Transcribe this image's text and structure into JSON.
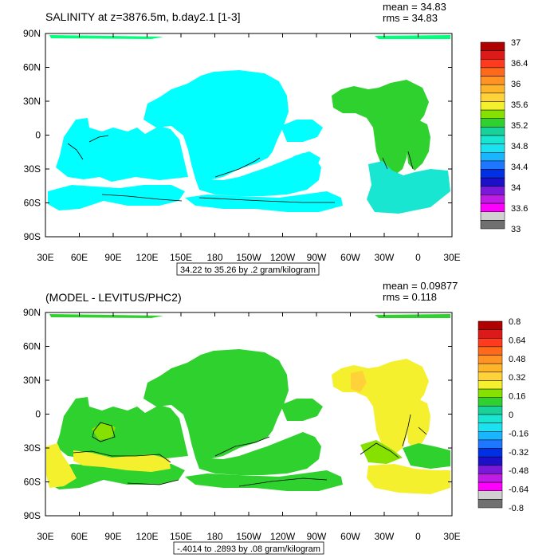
{
  "chart_data": [
    {
      "type": "heatmap",
      "title": "SALINITY at z=3876.5m, b.day2.1 [1-3]",
      "stats": {
        "mean": "mean = 34.83",
        "rms": "rms = 34.83"
      },
      "x_ticks": [
        "30E",
        "60E",
        "90E",
        "120E",
        "150E",
        "180",
        "150W",
        "120W",
        "90W",
        "60W",
        "30W",
        "0",
        "30E"
      ],
      "y_ticks": [
        "90N",
        "60N",
        "30N",
        "0",
        "30S",
        "60S",
        "90S"
      ],
      "contour_info": "34.22 to 35.26 by .2 gram/kilogram",
      "colorbar_labels": [
        "37",
        "36.4",
        "36",
        "35.6",
        "35.2",
        "34.8",
        "34.4",
        "34",
        "33.6",
        "33"
      ],
      "colorbar_colors": [
        "#b10000",
        "#dc1a1a",
        "#ff3a1f",
        "#ff6a1a",
        "#ff9425",
        "#ffb52a",
        "#ffd23a",
        "#f5f02e",
        "#86e000",
        "#2fd12f",
        "#19d29a",
        "#18e6d0",
        "#1ae2f0",
        "#1ab4ff",
        "#1e78ff",
        "#0030e6",
        "#1c10c8",
        "#7a1ad8",
        "#c01ce6",
        "#ff00ff",
        "#d0d0d0",
        "#707070"
      ],
      "colors": {
        "deep_water": "#00ffff",
        "ridge": "#2fd12f",
        "antarctic": "#19e6d0"
      }
    },
    {
      "type": "heatmap",
      "title": "(MODEL - LEVITUS/PHC2)",
      "stats": {
        "mean": "mean = 0.09877",
        "rms": "rms = 0.118"
      },
      "x_ticks": [
        "30E",
        "60E",
        "90E",
        "120E",
        "150E",
        "180",
        "150W",
        "120W",
        "90W",
        "60W",
        "30W",
        "0",
        "30E"
      ],
      "y_ticks": [
        "90N",
        "60N",
        "30N",
        "0",
        "30S",
        "60S",
        "90S"
      ],
      "contour_info": "-.4014 to .2893 by .08 gram/kilogram",
      "colorbar_labels": [
        "0.8",
        "0.64",
        "0.48",
        "0.32",
        "0.16",
        "0",
        "-0.16",
        "-0.32",
        "-0.48",
        "-0.64",
        "-0.8"
      ],
      "colorbar_colors": [
        "#b10000",
        "#dc1a1a",
        "#ff3a1f",
        "#ff6a1a",
        "#ff9425",
        "#ffb52a",
        "#ffd23a",
        "#f5f02e",
        "#86e000",
        "#2fd12f",
        "#19d29a",
        "#18e6d0",
        "#1ae2f0",
        "#1ab4ff",
        "#1e78ff",
        "#0030e6",
        "#1c10c8",
        "#7a1ad8",
        "#c01ce6",
        "#ff00ff",
        "#d0d0d0",
        "#707070"
      ],
      "colors": {
        "positive_small": "#2fd12f",
        "positive_mid": "#f5f02e",
        "positive_high": "#ffd23a"
      }
    }
  ]
}
